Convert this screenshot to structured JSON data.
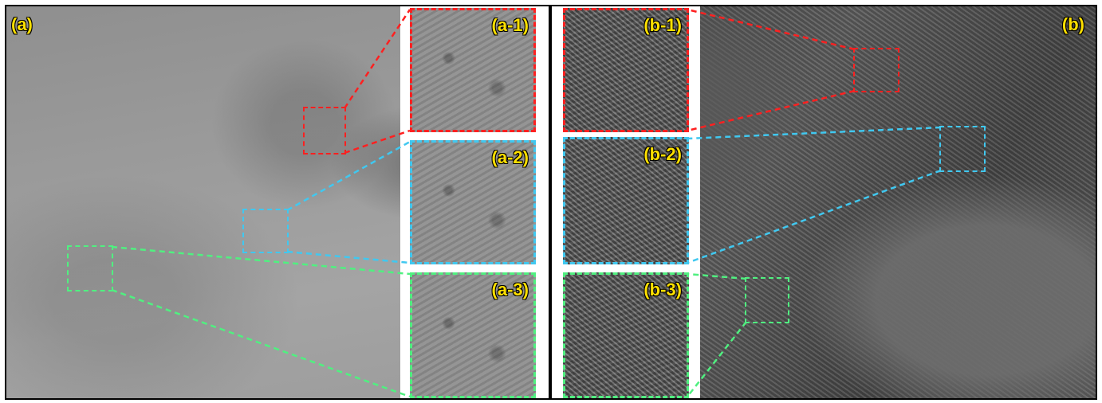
{
  "panels": {
    "a": {
      "label": "(a)"
    },
    "b": {
      "label": "(b)"
    }
  },
  "insets": {
    "a1": {
      "label": "(a-1)"
    },
    "a2": {
      "label": "(a-2)"
    },
    "a3": {
      "label": "(a-3)"
    },
    "b1": {
      "label": "(b-1)"
    },
    "b2": {
      "label": "(b-2)"
    },
    "b3": {
      "label": "(b-3)"
    }
  },
  "colors": {
    "red": "#ff2020",
    "cyan": "#40c8f0",
    "green": "#50f080",
    "label": "#ffe000"
  }
}
